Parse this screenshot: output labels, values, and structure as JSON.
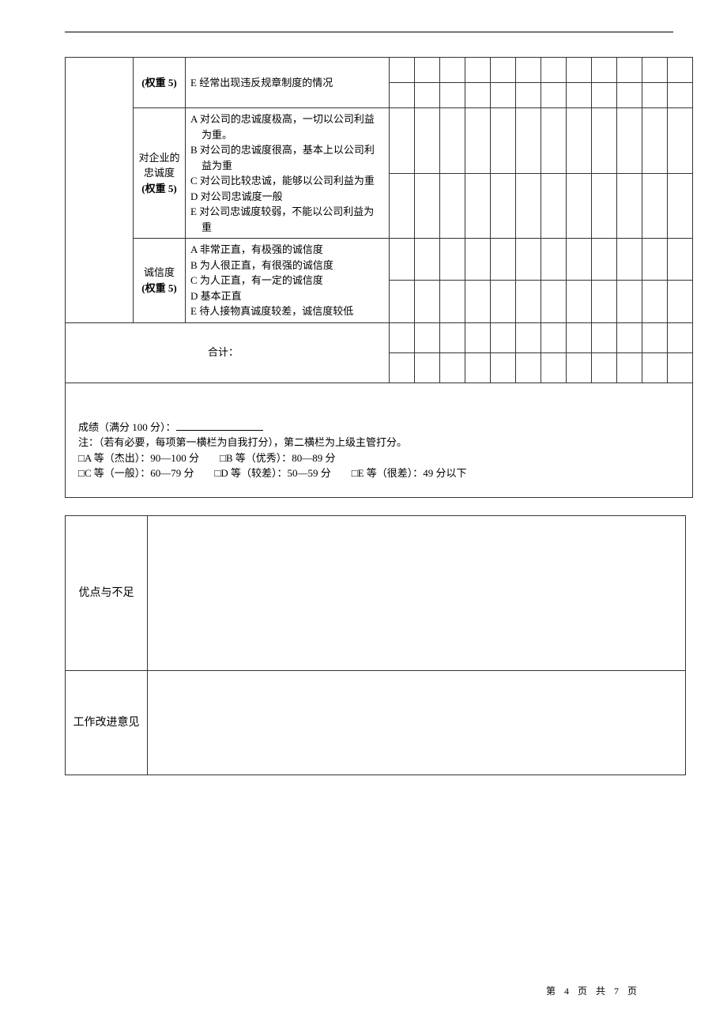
{
  "rows": [
    {
      "item": "",
      "weight": "(权重 5)",
      "desc_top": [
        "E 经常出现违反规章制度的情况"
      ],
      "desc_bot": []
    },
    {
      "item": "对企业的忠诚度",
      "weight": "(权重 5)",
      "desc_top": [
        "A 对公司的忠诚度极高，一切以公司利益为重。",
        "B 对公司的忠诚度很高，基本上以公司利益为重"
      ],
      "desc_bot": [
        "C 对公司比较忠诚，能够以公司利益为重",
        "D 对公司忠诚度一般",
        "E 对公司忠诚度较弱，不能以公司利益为重"
      ]
    },
    {
      "item": "诚信度",
      "weight": "(权重 5)",
      "desc_top": [
        "A 非常正直，有极强的诚信度",
        "B 为人很正直，有很强的诚信度"
      ],
      "desc_bot": [
        "C 为人正直，有一定的诚信度",
        "D 基本正直",
        "E 待人接物真诚度较差，诚信度较低"
      ]
    }
  ],
  "total_label": "合计：",
  "notes": {
    "score_label": "成绩（满分 100 分）：",
    "note_line": "注：（若有必要，每项第一横栏为自我打分），第二横栏为上级主管打分。",
    "grade_a": "□A 等（杰出）：90—100 分",
    "grade_b": "□B 等（优秀）：80—89 分",
    "grade_c": "□C 等（一般）：60—79 分",
    "grade_d": "□D 等（较差）：50—59 分",
    "grade_e": "□E 等（很差）：49 分以下"
  },
  "lower": {
    "advantage": "优点与不足",
    "improve": "工作改进意见"
  },
  "footer": {
    "label_prefix": "第",
    "page": "4",
    "label_mid": "页 共",
    "total": "7",
    "label_suffix": "页"
  }
}
